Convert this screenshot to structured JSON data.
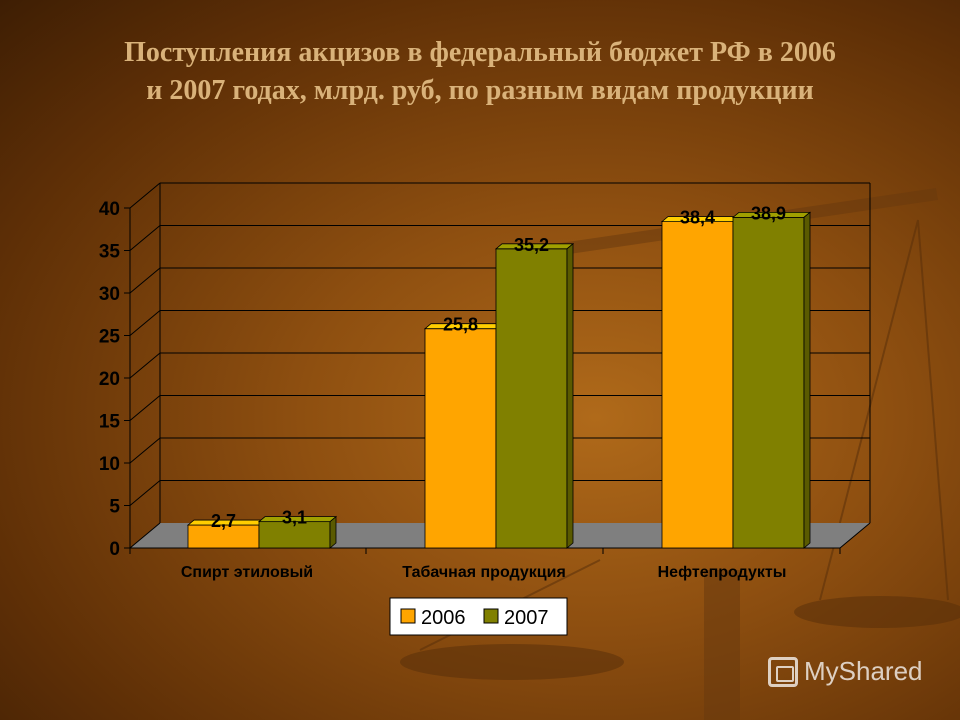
{
  "title_line1": "Поступления акцизов в  федеральный бюджет РФ в 2006",
  "title_line2": "и  2007 годах, млрд. руб, по разным видам продукции",
  "watermark": "MyShared",
  "colors": {
    "s2006": "#ffa500",
    "s2007": "#808000",
    "floor": "#7f7f7f"
  },
  "chart_data": {
    "type": "bar",
    "title": "Поступления акцизов в  федеральный бюджет РФ в 2006 и  2007 годах, млрд. руб, по разным видам продукции",
    "categories": [
      "Спирт этиловый",
      "Табачная продукция",
      "Нефтепродукты"
    ],
    "series": [
      {
        "name": "2006",
        "values": [
          2.7,
          25.8,
          38.4
        ],
        "labels": [
          "2,7",
          "25,8",
          "38,4"
        ]
      },
      {
        "name": "2007",
        "values": [
          3.1,
          35.2,
          38.9
        ],
        "labels": [
          "3,1",
          "35,2",
          "38,9"
        ]
      }
    ],
    "yticks": [
      0,
      5,
      10,
      15,
      20,
      25,
      30,
      35,
      40
    ],
    "ylim": [
      0,
      40
    ],
    "grid": true,
    "legend": "bottom"
  }
}
